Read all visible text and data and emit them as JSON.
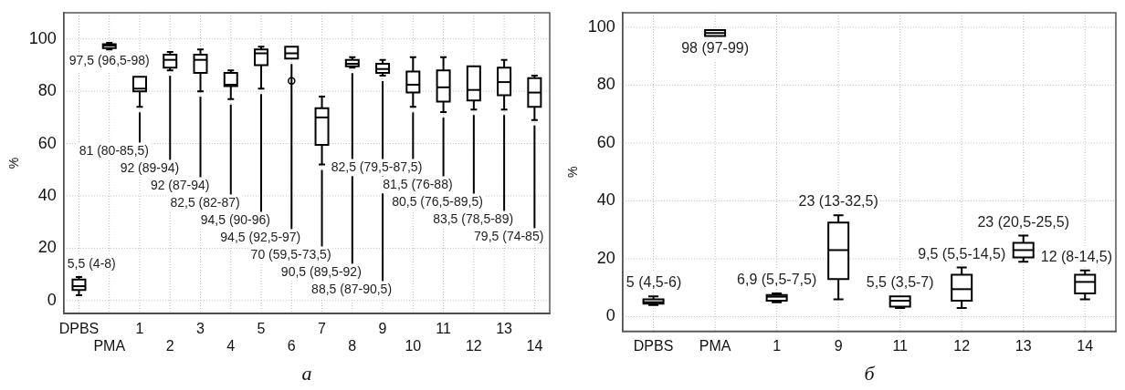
{
  "chart_data": [
    {
      "type": "box",
      "xlabel": "а",
      "ylabel": "%",
      "categories": [
        "DPBS",
        "PMA",
        "1",
        "2",
        "3",
        "4",
        "5",
        "6",
        "7",
        "8",
        "9",
        "10",
        "11",
        "12",
        "13",
        "14"
      ],
      "ylim": [
        -5,
        110
      ],
      "yticks": [
        0,
        20,
        40,
        60,
        80,
        100
      ],
      "grid": true,
      "series": [
        {
          "color": "#000000",
          "boxes": [
            {
              "low": 2,
              "q1": 4,
              "median": 5.5,
              "q3": 8,
              "high": 9
            },
            {
              "low": 96,
              "q1": 96.5,
              "median": 97.5,
              "q3": 98,
              "high": 98.5
            },
            {
              "low": 74,
              "q1": 80,
              "median": 81,
              "q3": 85.5,
              "high": 85.5
            },
            {
              "low": 88,
              "q1": 89,
              "median": 92,
              "q3": 94,
              "high": 95
            },
            {
              "low": 80,
              "q1": 87,
              "median": 92,
              "q3": 94,
              "high": 96
            },
            {
              "low": 77,
              "q1": 82,
              "median": 82.5,
              "q3": 87,
              "high": 88
            },
            {
              "low": 81,
              "q1": 90,
              "median": 94.5,
              "q3": 96,
              "high": 97
            },
            {
              "low": 92.5,
              "q1": 92.5,
              "median": 94.5,
              "q3": 97,
              "high": 97,
              "outliers": [
                84
              ]
            },
            {
              "low": 52,
              "q1": 59.5,
              "median": 70,
              "q3": 73.5,
              "high": 78
            },
            {
              "low": 89,
              "q1": 89.5,
              "median": 90.5,
              "q3": 92,
              "high": 93
            },
            {
              "low": 86,
              "q1": 87,
              "median": 88.5,
              "q3": 90.5,
              "high": 92
            },
            {
              "low": 74,
              "q1": 79.5,
              "median": 82.5,
              "q3": 87.5,
              "high": 93
            },
            {
              "low": 72,
              "q1": 76,
              "median": 81.5,
              "q3": 88,
              "high": 93
            },
            {
              "low": 73,
              "q1": 76.5,
              "median": 80.5,
              "q3": 89.5,
              "high": 89.5
            },
            {
              "low": 73,
              "q1": 78.5,
              "median": 83.5,
              "q3": 89,
              "high": 92
            },
            {
              "low": 69,
              "q1": 74,
              "median": 79.5,
              "q3": 85,
              "high": 86
            }
          ]
        }
      ],
      "annotations": [
        "5,5 (4-8)",
        "97,5 (96,5-98)",
        "81 (80-85,5)",
        "92 (89-94)",
        "92 (87-94)",
        "82,5 (82-87)",
        "94,5 (90-96)",
        "94,5 (92,5-97)",
        "70 (59,5-73,5)",
        "90,5 (89,5-92)",
        "88,5 (87-90,5)",
        "82,5 (79,5-87,5)",
        "81,5 (76-88)",
        "80,5 (76,5-89,5)",
        "83,5 (78,5-89)",
        "79,5 (74-85)"
      ]
    },
    {
      "type": "box",
      "xlabel": "б",
      "ylabel": "%",
      "categories": [
        "DPBS",
        "PMA",
        "1",
        "9",
        "11",
        "12",
        "13",
        "14"
      ],
      "ylim": [
        -5,
        105
      ],
      "yticks": [
        0,
        20,
        40,
        60,
        80,
        100
      ],
      "grid": true,
      "series": [
        {
          "color": "#000000",
          "boxes": [
            {
              "low": 4,
              "q1": 4.5,
              "median": 5,
              "q3": 6,
              "high": 7
            },
            {
              "low": 97,
              "q1": 97,
              "median": 98,
              "q3": 99,
              "high": 99
            },
            {
              "low": 5,
              "q1": 5.5,
              "median": 6.9,
              "q3": 7.5,
              "high": 8
            },
            {
              "low": 6,
              "q1": 13,
              "median": 23,
              "q3": 32.5,
              "high": 35
            },
            {
              "low": 3,
              "q1": 3.5,
              "median": 5.5,
              "q3": 7,
              "high": 7
            },
            {
              "low": 3,
              "q1": 5.5,
              "median": 9.5,
              "q3": 14.5,
              "high": 17
            },
            {
              "low": 19,
              "q1": 20.5,
              "median": 23,
              "q3": 25.5,
              "high": 28
            },
            {
              "low": 6,
              "q1": 8,
              "median": 12,
              "q3": 14.5,
              "high": 16
            }
          ]
        }
      ],
      "annotations": [
        "5 (4,5-6)",
        "98 (97-99)",
        "6,9 (5,5-7,5)",
        "23 (13-32,5)",
        "5,5 (3,5-7)",
        "9,5 (5,5-14,5)",
        "23 (20,5-25,5)",
        "12 (8-14,5)"
      ]
    }
  ]
}
